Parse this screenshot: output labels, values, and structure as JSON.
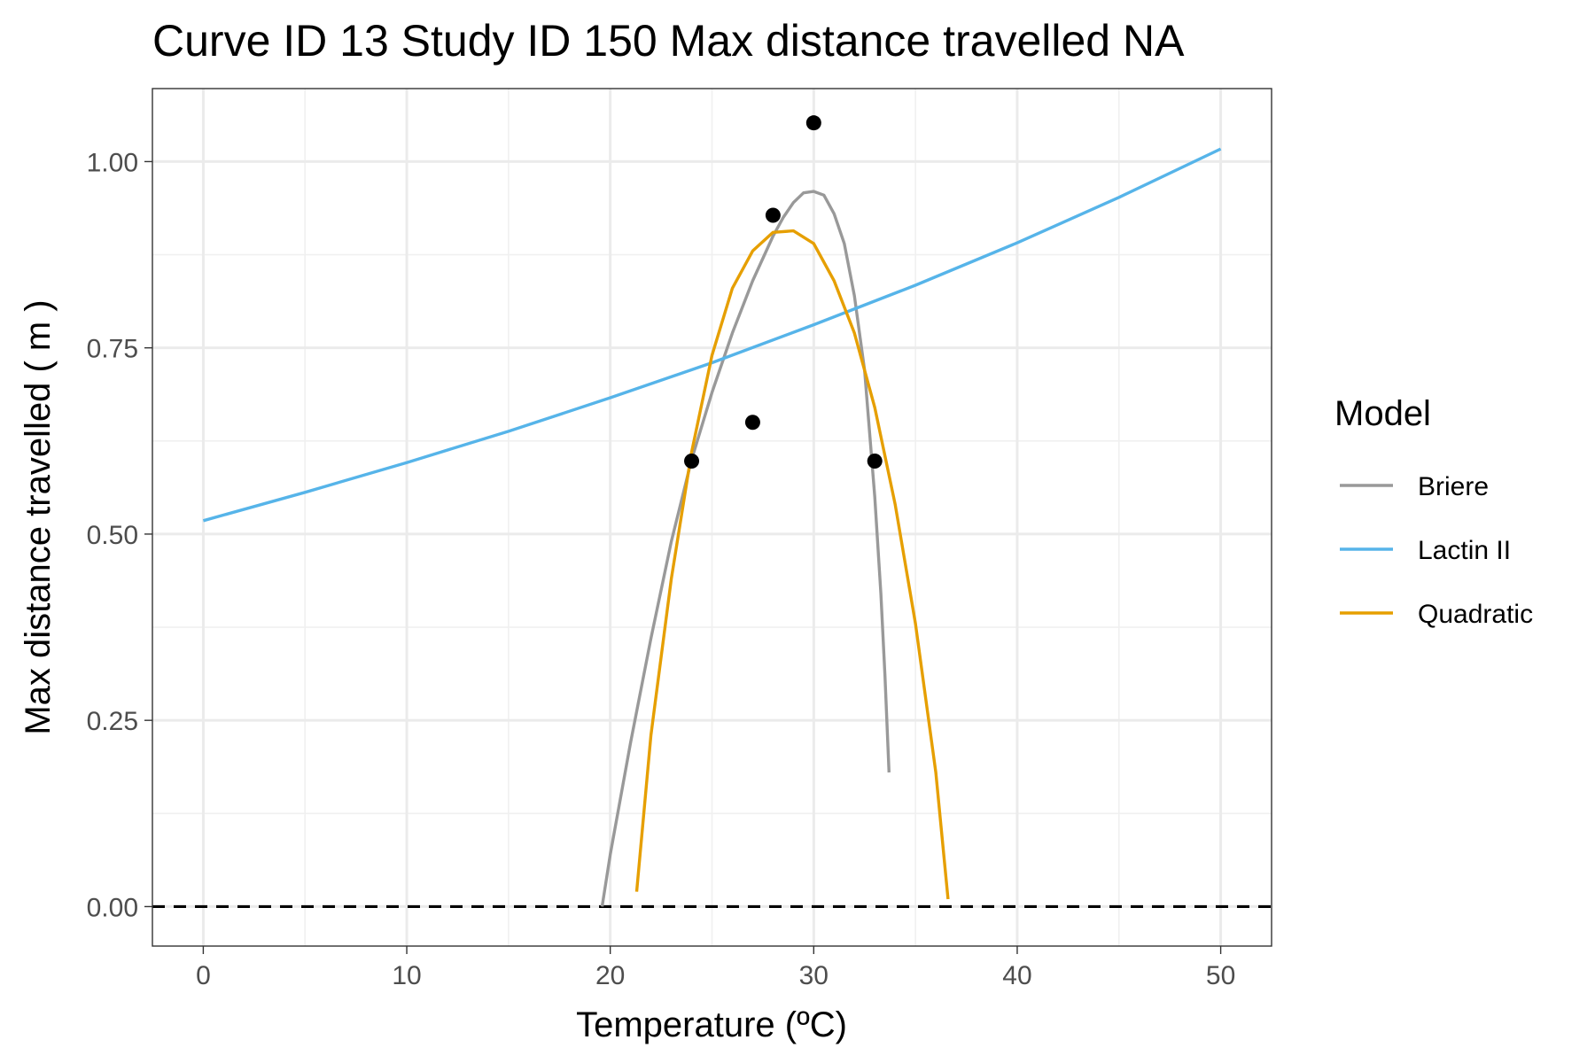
{
  "chart_data": {
    "type": "line",
    "title": "Curve ID 13 Study ID 150 Max distance travelled NA",
    "xlabel": "Temperature (ºC)",
    "ylabel": "Max distance travelled ( m )",
    "xlim": [
      -2.5,
      52.5
    ],
    "ylim": [
      -0.053,
      1.098
    ],
    "x_ticks": [
      0,
      10,
      20,
      30,
      40,
      50
    ],
    "x_tick_labels": [
      "0",
      "10",
      "20",
      "30",
      "40",
      "50"
    ],
    "y_ticks": [
      0,
      0.25,
      0.5,
      0.75,
      1.0
    ],
    "y_tick_labels": [
      "0.00",
      "0.25",
      "0.50",
      "0.75",
      "1.00"
    ],
    "grid": true,
    "reference_line": {
      "y": 0,
      "style": "dashed",
      "color": "#000000"
    },
    "points": [
      {
        "x": 24,
        "y": 0.598
      },
      {
        "x": 27,
        "y": 0.65
      },
      {
        "x": 28,
        "y": 0.928
      },
      {
        "x": 30,
        "y": 1.052
      },
      {
        "x": 33,
        "y": 0.598
      }
    ],
    "legend": {
      "title": "Model",
      "position": "right"
    },
    "series": [
      {
        "name": "Briere",
        "color": "#999999",
        "x": [
          19.6,
          20,
          21,
          22,
          23,
          24,
          25,
          26,
          27,
          28,
          28.5,
          29,
          29.5,
          30,
          30.5,
          31,
          31.5,
          32,
          32.5,
          33,
          33.3,
          33.5,
          33.7
        ],
        "y": [
          0.0,
          0.07,
          0.22,
          0.36,
          0.49,
          0.6,
          0.69,
          0.77,
          0.84,
          0.9,
          0.925,
          0.945,
          0.958,
          0.96,
          0.955,
          0.93,
          0.89,
          0.82,
          0.72,
          0.55,
          0.42,
          0.31,
          0.18
        ]
      },
      {
        "name": "Lactin II",
        "color": "#56B4E9",
        "x": [
          0,
          5,
          10,
          15,
          20,
          25,
          30,
          35,
          40,
          45,
          50
        ],
        "y": [
          0.518,
          0.556,
          0.596,
          0.638,
          0.683,
          0.73,
          0.781,
          0.834,
          0.891,
          0.952,
          1.017
        ]
      },
      {
        "name": "Quadratic",
        "color": "#E69F00",
        "x": [
          21.3,
          22,
          23,
          24,
          25,
          26,
          27,
          28,
          29,
          30,
          31,
          32,
          33,
          34,
          35,
          36,
          36.6
        ],
        "y": [
          0.02,
          0.23,
          0.44,
          0.61,
          0.74,
          0.83,
          0.88,
          0.905,
          0.907,
          0.89,
          0.84,
          0.77,
          0.67,
          0.54,
          0.38,
          0.18,
          0.01
        ]
      }
    ]
  }
}
